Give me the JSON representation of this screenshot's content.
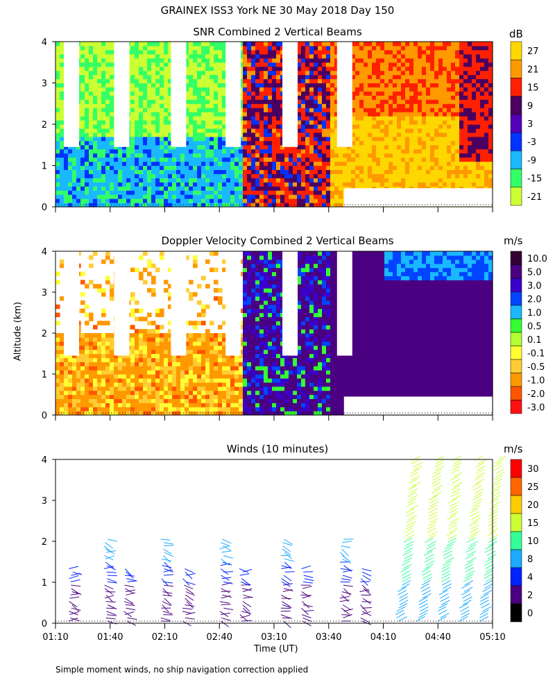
{
  "header": {
    "title": "GRAINEX ISS3 York NE  30 May 2018 Day 150",
    "ylabel": "Altitude (km)",
    "xlabel": "Time (UT)",
    "footnote": "Simple moment winds, no ship navigation correction applied"
  },
  "chart_data": [
    {
      "type": "heatmap",
      "title": "SNR Combined 2 Vertical Beams",
      "units": "dB",
      "ylim": [
        0,
        4
      ],
      "yticks": [
        "0",
        "1",
        "2",
        "3",
        "4"
      ],
      "xticks": [
        "01:10",
        "01:40",
        "02:10",
        "02:40",
        "03:10",
        "03:40",
        "04:10",
        "04:40",
        "05:10"
      ],
      "colorbar": {
        "labels": [
          "27",
          "21",
          "15",
          "9",
          "3",
          "-3",
          "-9",
          "-15",
          "-21"
        ],
        "colors": [
          "#ffd700",
          "#ff9900",
          "#ff2000",
          "#4b0060",
          "#5500bb",
          "#0033ff",
          "#1ab8ff",
          "#33ff66",
          "#ccff33"
        ]
      },
      "regimes": [
        {
          "from": "01:10",
          "to": "02:45",
          "description_value": "-9",
          "color": "#1ab8ff"
        },
        {
          "from": "02:45",
          "to": "03:40",
          "description_value": "15",
          "color": "#ff2000"
        },
        {
          "from": "03:40",
          "to": "05:10",
          "description_value": "21",
          "color": "#ff9900"
        }
      ]
    },
    {
      "type": "heatmap",
      "title": "Doppler Velocity Combined 2 Vertical Beams",
      "units": "m/s",
      "ylim": [
        0,
        4
      ],
      "yticks": [
        "0",
        "1",
        "2",
        "3",
        "4"
      ],
      "xticks": [
        "01:10",
        "01:40",
        "02:10",
        "02:40",
        "03:10",
        "03:40",
        "04:10",
        "04:40",
        "05:10"
      ],
      "colorbar": {
        "labels": [
          "10.0",
          "5.0",
          "3.0",
          "2.0",
          "1.0",
          "0.5",
          "0.1",
          "-0.1",
          "-0.5",
          "-1.0",
          "-2.0",
          "-3.0"
        ],
        "colors": [
          "#330033",
          "#4b0082",
          "#3a00cc",
          "#0044ff",
          "#1ab8ff",
          "#33ff33",
          "#b3ff33",
          "#ffff33",
          "#ffcc33",
          "#ff9900",
          "#ff5500",
          "#ff1111"
        ]
      }
    },
    {
      "type": "scatter",
      "title": "Winds (10 minutes)",
      "units": "m/s",
      "ylim": [
        0,
        4
      ],
      "yticks": [
        "0",
        "1",
        "2",
        "3",
        "4"
      ],
      "xticks": [
        "01:10",
        "01:40",
        "02:10",
        "02:40",
        "03:10",
        "03:40",
        "04:10",
        "04:40",
        "05:10"
      ],
      "colorbar": {
        "labels": [
          "30",
          "25",
          "20",
          "15",
          "10",
          "8",
          "4",
          "2",
          "0"
        ],
        "colors": [
          "#ff0000",
          "#ff6600",
          "#ffcc00",
          "#ccff33",
          "#33ff99",
          "#1aaaff",
          "#0022ff",
          "#4b0082",
          "#000000"
        ]
      }
    }
  ]
}
